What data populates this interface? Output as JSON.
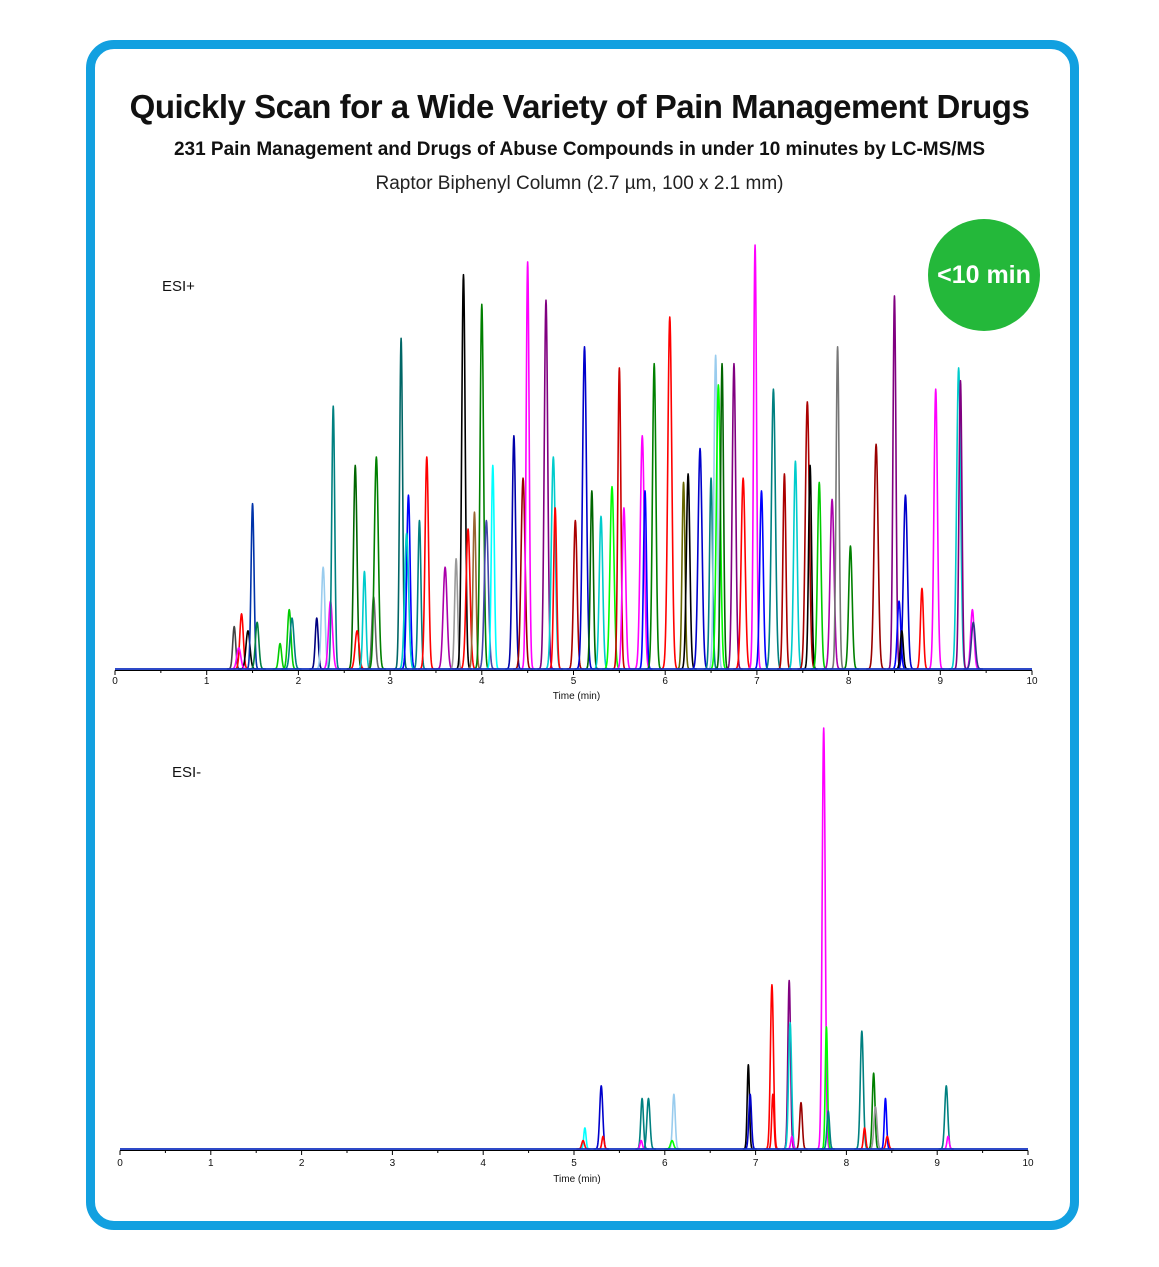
{
  "header": {
    "title": "Quickly Scan for a Wide Variety of Pain Management Drugs",
    "subtitle": "231 Pain Management and Drugs of Abuse Compounds in under 10 minutes by LC-MS/MS",
    "column": "Raptor Biphenyl Column (2.7 µm, 100 x 2.1 mm)"
  },
  "badge": {
    "text": "<10 min",
    "color": "#24b83a"
  },
  "colors": {
    "border": "#12a0e0"
  },
  "chart_data": [
    {
      "type": "line",
      "label": "ESI+",
      "xlabel": "Time (min)",
      "xlim": [
        0,
        10
      ],
      "xticks": [
        "0",
        "1",
        "2",
        "3",
        "4",
        "5",
        "6",
        "7",
        "8",
        "9",
        "10"
      ],
      "ylim": [
        0,
        1
      ],
      "grid": false,
      "peaks": [
        [
          1.3,
          0.1,
          "#444444"
        ],
        [
          1.38,
          0.13,
          "#ff0000"
        ],
        [
          1.45,
          0.09,
          "#000000"
        ],
        [
          1.5,
          0.39,
          "#0033aa"
        ],
        [
          1.55,
          0.11,
          "#008040"
        ],
        [
          1.35,
          0.05,
          "#ff00ff"
        ],
        [
          1.8,
          0.06,
          "#00cc00"
        ],
        [
          1.9,
          0.14,
          "#00cc00"
        ],
        [
          1.93,
          0.12,
          "#008080"
        ],
        [
          2.2,
          0.12,
          "#000080"
        ],
        [
          2.27,
          0.24,
          "#99ccee"
        ],
        [
          2.35,
          0.16,
          "#ff00ff"
        ],
        [
          2.38,
          0.62,
          "#008080"
        ],
        [
          2.62,
          0.48,
          "#006600"
        ],
        [
          2.64,
          0.09,
          "#ff0000"
        ],
        [
          2.72,
          0.23,
          "#00cccc"
        ],
        [
          2.82,
          0.17,
          "#666666"
        ],
        [
          2.85,
          0.5,
          "#008000"
        ],
        [
          3.12,
          0.78,
          "#006666"
        ],
        [
          3.2,
          0.41,
          "#0000ff"
        ],
        [
          3.18,
          0.32,
          "#00cccc"
        ],
        [
          3.32,
          0.35,
          "#008080"
        ],
        [
          3.4,
          0.5,
          "#ff0000"
        ],
        [
          3.6,
          0.24,
          "#aa00aa"
        ],
        [
          3.72,
          0.26,
          "#999999"
        ],
        [
          3.8,
          0.93,
          "#000000"
        ],
        [
          3.85,
          0.33,
          "#ff0000"
        ],
        [
          3.92,
          0.37,
          "#996633"
        ],
        [
          4.0,
          0.86,
          "#008000"
        ],
        [
          4.05,
          0.35,
          "#4444aa"
        ],
        [
          4.12,
          0.48,
          "#00ffff"
        ],
        [
          4.35,
          0.55,
          "#0000aa"
        ],
        [
          4.45,
          0.45,
          "#990000"
        ],
        [
          4.5,
          0.96,
          "#ff00ff"
        ],
        [
          4.7,
          0.87,
          "#800080"
        ],
        [
          4.78,
          0.5,
          "#00cccc"
        ],
        [
          4.8,
          0.38,
          "#ff0000"
        ],
        [
          5.02,
          0.35,
          "#aa0000"
        ],
        [
          5.12,
          0.76,
          "#0000cc"
        ],
        [
          5.2,
          0.42,
          "#006600"
        ],
        [
          5.3,
          0.36,
          "#00cccc"
        ],
        [
          5.42,
          0.43,
          "#00ff00"
        ],
        [
          5.5,
          0.71,
          "#cc0000"
        ],
        [
          5.55,
          0.38,
          "#ff00ff"
        ],
        [
          5.75,
          0.55,
          "#ff00ff"
        ],
        [
          5.78,
          0.42,
          "#0000ff"
        ],
        [
          5.88,
          0.72,
          "#008000"
        ],
        [
          6.05,
          0.83,
          "#ff0000"
        ],
        [
          6.2,
          0.44,
          "#666600"
        ],
        [
          6.25,
          0.46,
          "#000000"
        ],
        [
          6.38,
          0.52,
          "#0000cc"
        ],
        [
          6.5,
          0.45,
          "#008080"
        ],
        [
          6.55,
          0.74,
          "#99ccee"
        ],
        [
          6.58,
          0.67,
          "#00ff00"
        ],
        [
          6.62,
          0.72,
          "#006600"
        ],
        [
          6.75,
          0.72,
          "#800080"
        ],
        [
          6.85,
          0.45,
          "#ff0000"
        ],
        [
          6.98,
          1.0,
          "#ff00ff"
        ],
        [
          7.05,
          0.42,
          "#0000ff"
        ],
        [
          7.18,
          0.66,
          "#008080"
        ],
        [
          7.3,
          0.46,
          "#aa0000"
        ],
        [
          7.42,
          0.49,
          "#00cccc"
        ],
        [
          7.55,
          0.63,
          "#aa0000"
        ],
        [
          7.58,
          0.48,
          "#000000"
        ],
        [
          7.68,
          0.44,
          "#00cc00"
        ],
        [
          7.82,
          0.4,
          "#aa00aa"
        ],
        [
          7.88,
          0.76,
          "#777777"
        ],
        [
          8.02,
          0.29,
          "#008000"
        ],
        [
          8.3,
          0.53,
          "#990000"
        ],
        [
          8.5,
          0.88,
          "#800080"
        ],
        [
          8.55,
          0.16,
          "#0000ff"
        ],
        [
          8.62,
          0.41,
          "#0000cc"
        ],
        [
          8.8,
          0.19,
          "#ff0000"
        ],
        [
          8.95,
          0.66,
          "#ff00ff"
        ],
        [
          9.2,
          0.71,
          "#00cccc"
        ],
        [
          9.22,
          0.68,
          "#800080"
        ],
        [
          9.35,
          0.14,
          "#ff00ff"
        ],
        [
          9.36,
          0.11,
          "#333388"
        ],
        [
          8.58,
          0.09,
          "#000000"
        ]
      ]
    },
    {
      "type": "line",
      "label": "ESI-",
      "xlabel": "Time (min)",
      "xlim": [
        0,
        10
      ],
      "xticks": [
        "0",
        "1",
        "2",
        "3",
        "4",
        "5",
        "6",
        "7",
        "8",
        "9",
        "10"
      ],
      "ylim": [
        0,
        1
      ],
      "grid": false,
      "peaks": [
        [
          5.12,
          0.05,
          "#00ffff"
        ],
        [
          5.1,
          0.02,
          "#ff0000"
        ],
        [
          5.3,
          0.15,
          "#0000cc"
        ],
        [
          5.32,
          0.03,
          "#ff0000"
        ],
        [
          5.75,
          0.12,
          "#008080"
        ],
        [
          5.82,
          0.12,
          "#008080"
        ],
        [
          5.74,
          0.02,
          "#ff00ff"
        ],
        [
          6.1,
          0.13,
          "#99ccee"
        ],
        [
          6.08,
          0.02,
          "#00ff00"
        ],
        [
          6.92,
          0.2,
          "#000000"
        ],
        [
          6.94,
          0.13,
          "#0000cc"
        ],
        [
          7.18,
          0.39,
          "#ff0000"
        ],
        [
          7.19,
          0.13,
          "#ff0000"
        ],
        [
          7.37,
          0.4,
          "#800080"
        ],
        [
          7.38,
          0.3,
          "#00cccc"
        ],
        [
          7.4,
          0.03,
          "#ff00ff"
        ],
        [
          7.5,
          0.11,
          "#990000"
        ],
        [
          7.75,
          1.0,
          "#ff00ff"
        ],
        [
          7.78,
          0.29,
          "#00ff00"
        ],
        [
          7.8,
          0.09,
          "#008080"
        ],
        [
          8.17,
          0.28,
          "#008080"
        ],
        [
          8.2,
          0.05,
          "#ff0000"
        ],
        [
          8.3,
          0.18,
          "#008000"
        ],
        [
          8.32,
          0.1,
          "#999999"
        ],
        [
          8.43,
          0.12,
          "#0000ff"
        ],
        [
          8.45,
          0.03,
          "#ff0000"
        ],
        [
          9.1,
          0.15,
          "#008080"
        ],
        [
          9.12,
          0.03,
          "#ff00ff"
        ]
      ]
    }
  ]
}
